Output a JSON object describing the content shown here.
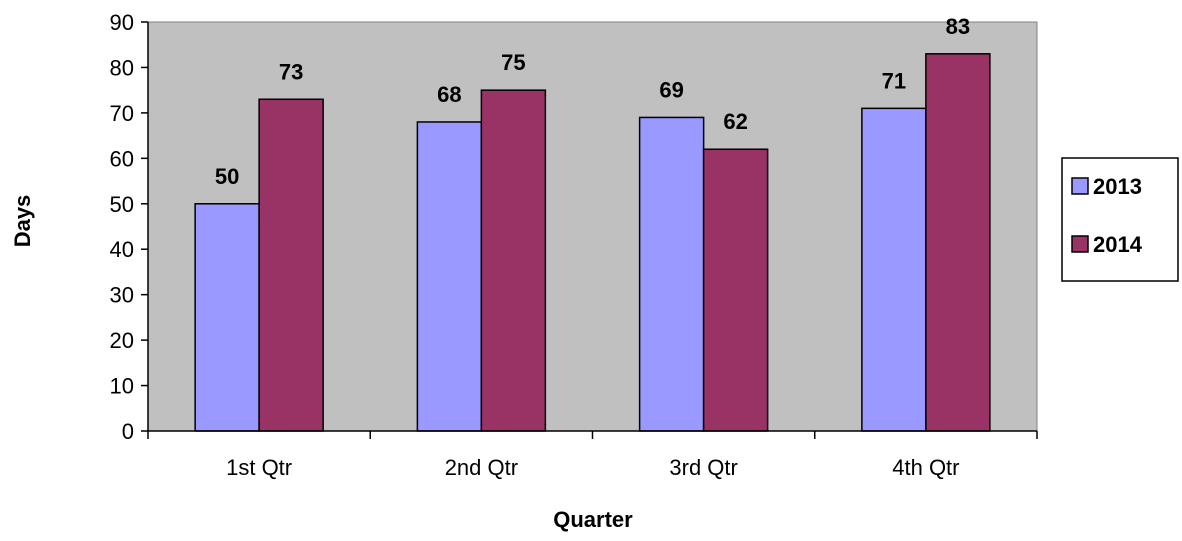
{
  "chart_data": {
    "type": "bar",
    "title": "",
    "xlabel": "Quarter",
    "ylabel": "Days",
    "categories": [
      "1st Qtr",
      "2nd Qtr",
      "3rd Qtr",
      "4th Qtr"
    ],
    "series": [
      {
        "name": "2013",
        "values": [
          50,
          68,
          69,
          71
        ],
        "color": "#9999ff"
      },
      {
        "name": "2014",
        "values": [
          73,
          75,
          62,
          83
        ],
        "color": "#993366"
      }
    ],
    "ylim": [
      0,
      90
    ],
    "yticks": [
      "0",
      "10",
      "20",
      "30",
      "40",
      "50",
      "60",
      "70",
      "80",
      "90"
    ],
    "data_labels": true,
    "grid": false,
    "plot_background": "#c0c0c0",
    "legend_position": "right"
  }
}
